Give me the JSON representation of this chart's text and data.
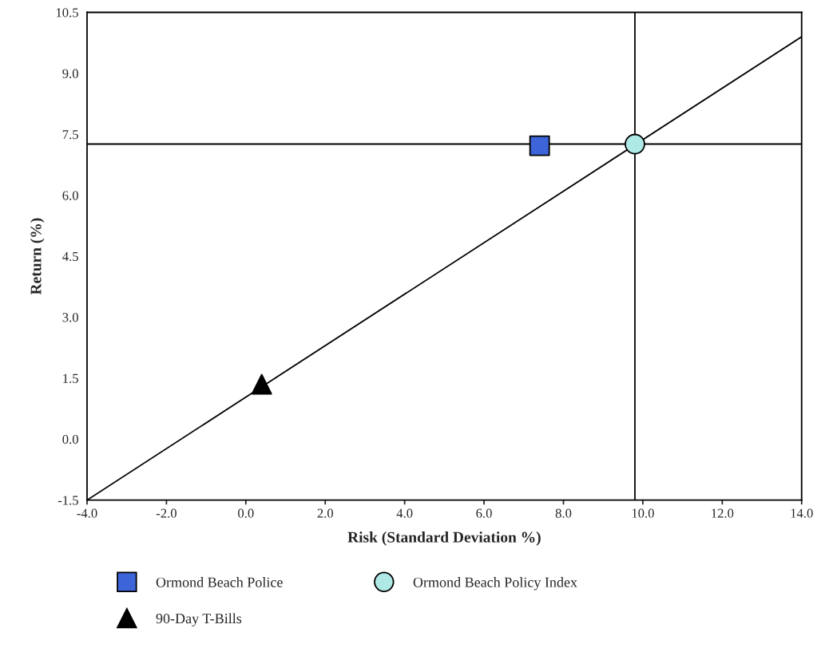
{
  "chart_data": {
    "type": "scatter",
    "xlabel": "Risk (Standard Deviation %)",
    "ylabel": "Return (%)",
    "xlim": [
      -4.0,
      14.0
    ],
    "ylim": [
      -1.5,
      10.5
    ],
    "xticks": [
      {
        "value": -4,
        "label": "-4.0"
      },
      {
        "value": -2,
        "label": "-2.0"
      },
      {
        "value": 0,
        "label": "0.0"
      },
      {
        "value": 2,
        "label": "2.0"
      },
      {
        "value": 4,
        "label": "4.0"
      },
      {
        "value": 6,
        "label": "6.0"
      },
      {
        "value": 8,
        "label": "8.0"
      },
      {
        "value": 10,
        "label": "10.0"
      },
      {
        "value": 12,
        "label": "12.0"
      },
      {
        "value": 14,
        "label": "14.0"
      }
    ],
    "yticks": [
      -1.5,
      {
        "value": 0,
        "label": "0.0"
      },
      1.5,
      {
        "value": 3,
        "label": "3.0"
      },
      4.5,
      {
        "value": 6,
        "label": "6.0"
      },
      7.5,
      {
        "value": 9,
        "label": "9.0"
      },
      10.5
    ],
    "grid": false,
    "legend": "bottom",
    "ref_lines": [
      {
        "axis": "x",
        "value": 9.8,
        "color": "#000000"
      },
      {
        "axis": "y",
        "value": 7.26,
        "color": "#000000"
      }
    ],
    "series": [
      {
        "type": "line",
        "color": "#000000",
        "x": [
          -4.0,
          14.0
        ],
        "values": [
          -1.5,
          9.9
        ],
        "marker": "none",
        "line_style": "solid"
      },
      {
        "name": "Ormond Beach Police",
        "color": "#3d64d8",
        "x": [
          7.4
        ],
        "values": [
          7.22
        ],
        "marker": "square"
      },
      {
        "name": "Ormond Beach Policy Index",
        "color": "#aee9e6",
        "x": [
          9.8
        ],
        "values": [
          7.26
        ],
        "marker": "circle"
      },
      {
        "name": "90-Day T-Bills",
        "color": "#000000",
        "x": [
          0.4
        ],
        "values": [
          1.35
        ],
        "marker": "triangle"
      }
    ]
  }
}
